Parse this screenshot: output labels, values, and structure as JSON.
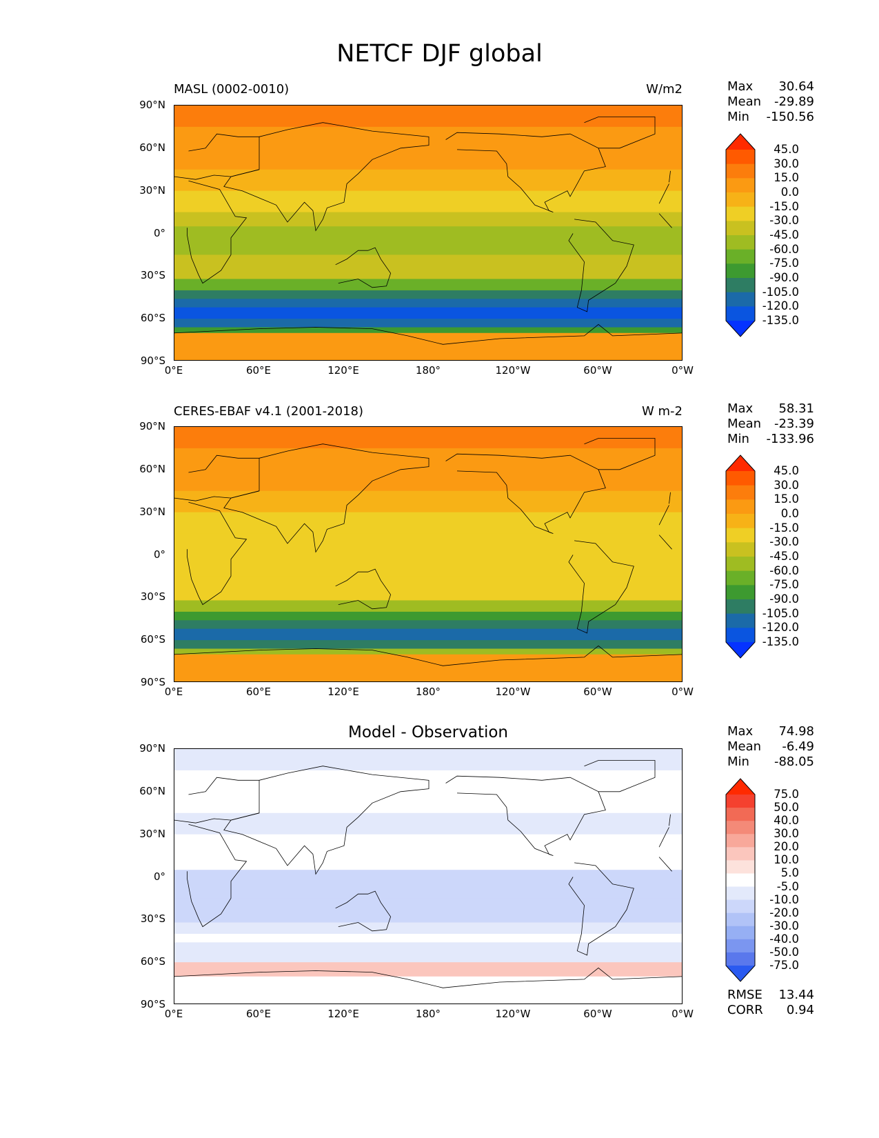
{
  "title": "NETCF DJF global",
  "chart_data": [
    {
      "type": "heatmap",
      "title_left": "MASL (0002-0010)",
      "title_right": "W/m2",
      "xticks": [
        "0°E",
        "60°E",
        "120°E",
        "180°",
        "120°W",
        "60°W",
        "0°W"
      ],
      "yticks": [
        "90°N",
        "60°N",
        "30°N",
        "0°",
        "30°S",
        "60°S",
        "90°S"
      ],
      "xlim": [
        0,
        360
      ],
      "ylim": [
        -90,
        90
      ],
      "stats": {
        "Max": "30.64",
        "Mean": "-29.89",
        "Min": "-150.56"
      },
      "colorbar": {
        "labels": [
          "45.0",
          "30.0",
          "15.0",
          "0.0",
          "-15.0",
          "-30.0",
          "-45.0",
          "-60.0",
          "-75.0",
          "-90.0",
          "-105.0",
          "-120.0",
          "-135.0"
        ],
        "colors": [
          "#ff2a00",
          "#ff5a00",
          "#fc7d0c",
          "#fb9a12",
          "#f7b217",
          "#efcf25",
          "#c9c120",
          "#9fbc22",
          "#6ab028",
          "#3d9a30",
          "#2e7d63",
          "#1b6aa8",
          "#0a55e0",
          "#0533ff"
        ]
      },
      "bands": [
        {
          "lat": [
            90,
            75
          ],
          "value": 20
        },
        {
          "lat": [
            75,
            45
          ],
          "value": 8
        },
        {
          "lat": [
            45,
            30
          ],
          "value": -12
        },
        {
          "lat": [
            30,
            15
          ],
          "value": -22
        },
        {
          "lat": [
            15,
            5
          ],
          "value": -32
        },
        {
          "lat": [
            5,
            -3
          ],
          "value": -55
        },
        {
          "lat": [
            -3,
            -15
          ],
          "value": -48
        },
        {
          "lat": [
            -15,
            -32
          ],
          "value": -42
        },
        {
          "lat": [
            -32,
            -40
          ],
          "value": -70
        },
        {
          "lat": [
            -40,
            -46
          ],
          "value": -95
        },
        {
          "lat": [
            -46,
            -52
          ],
          "value": -112
        },
        {
          "lat": [
            -52,
            -60
          ],
          "value": -128
        },
        {
          "lat": [
            -60,
            -66
          ],
          "value": -110
        },
        {
          "lat": [
            -66,
            -70
          ],
          "value": -80
        },
        {
          "lat": [
            -70,
            -90
          ],
          "value": 5
        }
      ]
    },
    {
      "type": "heatmap",
      "title_left": "CERES-EBAF v4.1 (2001-2018)",
      "title_right": "W m-2",
      "xticks": [
        "0°E",
        "60°E",
        "120°E",
        "180°",
        "120°W",
        "60°W",
        "0°W"
      ],
      "yticks": [
        "90°N",
        "60°N",
        "30°N",
        "0°",
        "30°S",
        "60°S",
        "90°S"
      ],
      "xlim": [
        0,
        360
      ],
      "ylim": [
        -90,
        90
      ],
      "stats": {
        "Max": "58.31",
        "Mean": "-23.39",
        "Min": "-133.96"
      },
      "colorbar": {
        "labels": [
          "45.0",
          "30.0",
          "15.0",
          "0.0",
          "-15.0",
          "-30.0",
          "-45.0",
          "-60.0",
          "-75.0",
          "-90.0",
          "-105.0",
          "-120.0",
          "-135.0"
        ],
        "colors": [
          "#ff2a00",
          "#ff5a00",
          "#fc7d0c",
          "#fb9a12",
          "#f7b217",
          "#efcf25",
          "#c9c120",
          "#9fbc22",
          "#6ab028",
          "#3d9a30",
          "#2e7d63",
          "#1b6aa8",
          "#0a55e0",
          "#0533ff"
        ]
      },
      "bands": [
        {
          "lat": [
            90,
            75
          ],
          "value": 28
        },
        {
          "lat": [
            75,
            45
          ],
          "value": 12
        },
        {
          "lat": [
            45,
            30
          ],
          "value": -5
        },
        {
          "lat": [
            30,
            15
          ],
          "value": -18
        },
        {
          "lat": [
            15,
            5
          ],
          "value": -25
        },
        {
          "lat": [
            5,
            -3
          ],
          "value": -30
        },
        {
          "lat": [
            -3,
            -15
          ],
          "value": -22
        },
        {
          "lat": [
            -15,
            -32
          ],
          "value": -28
        },
        {
          "lat": [
            -32,
            -40
          ],
          "value": -60
        },
        {
          "lat": [
            -40,
            -46
          ],
          "value": -85
        },
        {
          "lat": [
            -46,
            -52
          ],
          "value": -105
        },
        {
          "lat": [
            -52,
            -60
          ],
          "value": -118
        },
        {
          "lat": [
            -60,
            -66
          ],
          "value": -95
        },
        {
          "lat": [
            -66,
            -70
          ],
          "value": -60
        },
        {
          "lat": [
            -70,
            -90
          ],
          "value": 10
        }
      ]
    },
    {
      "type": "heatmap",
      "title_center": "Model - Observation",
      "xticks": [
        "0°E",
        "60°E",
        "120°E",
        "180°",
        "120°W",
        "60°W",
        "0°W"
      ],
      "yticks": [
        "90°N",
        "60°N",
        "30°N",
        "0°",
        "30°S",
        "60°S",
        "90°S"
      ],
      "xlim": [
        0,
        360
      ],
      "ylim": [
        -90,
        90
      ],
      "stats": {
        "Max": "74.98",
        "Mean": "-6.49",
        "Min": "-88.05"
      },
      "stats_bottom": {
        "RMSE": "13.44",
        "CORR": "0.94"
      },
      "colorbar": {
        "labels": [
          "75.0",
          "50.0",
          "40.0",
          "30.0",
          "20.0",
          "10.0",
          "5.0",
          "-5.0",
          "-10.0",
          "-20.0",
          "-30.0",
          "-40.0",
          "-50.0",
          "-75.0"
        ],
        "colors": [
          "#ff2a00",
          "#f5412f",
          "#f26a55",
          "#f48a78",
          "#f8a89a",
          "#fbc6bd",
          "#fde2dc",
          "#ffffff",
          "#e3e9fb",
          "#ccd7fa",
          "#b1c3f7",
          "#96aff4",
          "#7b96f0",
          "#5a78ec",
          "#2a5af0"
        ]
      },
      "bands": [
        {
          "lat": [
            90,
            75
          ],
          "value": -7
        },
        {
          "lat": [
            75,
            45
          ],
          "value": -3
        },
        {
          "lat": [
            45,
            30
          ],
          "value": -6
        },
        {
          "lat": [
            30,
            15
          ],
          "value": 3
        },
        {
          "lat": [
            15,
            5
          ],
          "value": -4
        },
        {
          "lat": [
            5,
            -3
          ],
          "value": -14
        },
        {
          "lat": [
            -3,
            -15
          ],
          "value": -18
        },
        {
          "lat": [
            -15,
            -32
          ],
          "value": -12
        },
        {
          "lat": [
            -32,
            -40
          ],
          "value": -8
        },
        {
          "lat": [
            -40,
            -46
          ],
          "value": -3
        },
        {
          "lat": [
            -46,
            -52
          ],
          "value": -9
        },
        {
          "lat": [
            -52,
            -60
          ],
          "value": -6
        },
        {
          "lat": [
            -60,
            -66
          ],
          "value": 14
        },
        {
          "lat": [
            -66,
            -70
          ],
          "value": 18
        },
        {
          "lat": [
            -70,
            -90
          ],
          "value": 2
        }
      ]
    }
  ]
}
